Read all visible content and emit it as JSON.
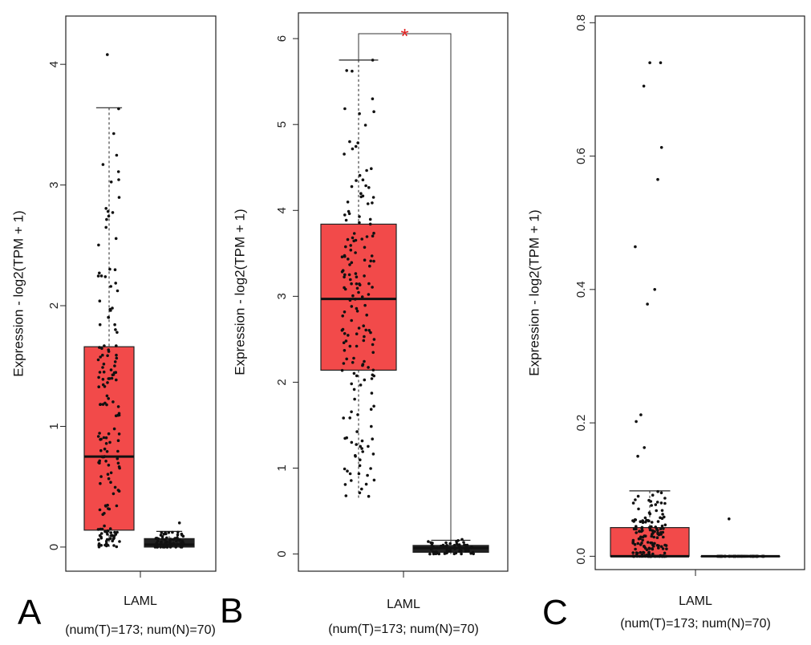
{
  "colors": {
    "tumor": "#f24a4a",
    "normal": "#222222",
    "star": "#e02020",
    "point": "#111111"
  },
  "chart_data": [
    {
      "type": "box",
      "panel": "A",
      "ylabel": "Expression - log2(TPM + 1)",
      "xlabel": "LAML",
      "xsublabel": "(num(T)=173; num(N)=70)",
      "ylim": [
        -0.2,
        4.4
      ],
      "yticks": [
        "0",
        "1",
        "2",
        "3",
        "4"
      ],
      "series": [
        {
          "group": "T",
          "n": 173,
          "q1": 0.14,
          "median": 0.75,
          "q3": 1.66,
          "whisker_low": 0.0,
          "whisker_high": 3.64,
          "max_outlier": 4.08
        },
        {
          "group": "N",
          "n": 70,
          "q1": 0.0,
          "median": 0.02,
          "q3": 0.07,
          "whisker_low": 0.0,
          "whisker_high": 0.13,
          "max_outlier": 0.2
        }
      ]
    },
    {
      "type": "box",
      "panel": "B",
      "ylabel": "Expression - log2(TPM + 1)",
      "xlabel": "LAML",
      "xsublabel": "(num(T)=173; num(N)=70)",
      "ylim": [
        -0.2,
        6.3
      ],
      "yticks": [
        "0",
        "1",
        "2",
        "3",
        "4",
        "5",
        "6"
      ],
      "significance": "*",
      "series": [
        {
          "group": "T",
          "n": 173,
          "q1": 2.14,
          "median": 2.97,
          "q3": 3.84,
          "whisker_low": 0.63,
          "whisker_high": 5.75,
          "max_outlier": 5.75
        },
        {
          "group": "N",
          "n": 70,
          "q1": 0.02,
          "median": 0.07,
          "q3": 0.1,
          "whisker_low": 0.0,
          "whisker_high": 0.16,
          "max_outlier": 0.17
        }
      ]
    },
    {
      "type": "box",
      "panel": "C",
      "ylabel": "Expression - log2(TPM + 1)",
      "xlabel": "LAML",
      "xsublabel": "(num(T)=173; num(N)=70)",
      "ylim": [
        -0.02,
        0.81
      ],
      "yticks": [
        "0.0",
        "0.2",
        "0.4",
        "0.6",
        "0.8"
      ],
      "series": [
        {
          "group": "T",
          "n": 173,
          "q1": 0.0,
          "median": 0.0,
          "q3": 0.043,
          "whisker_low": 0.0,
          "whisker_high": 0.098,
          "max_outlier": 0.74
        },
        {
          "group": "N",
          "n": 70,
          "q1": 0.0,
          "median": 0.0,
          "q3": 0.0,
          "whisker_low": 0.0,
          "whisker_high": 0.0,
          "max_outlier": 0.056
        }
      ],
      "outliers_T": [
        0.74,
        0.705,
        0.613,
        0.565,
        0.464,
        0.4,
        0.378,
        0.212,
        0.202,
        0.163,
        0.15
      ]
    }
  ]
}
